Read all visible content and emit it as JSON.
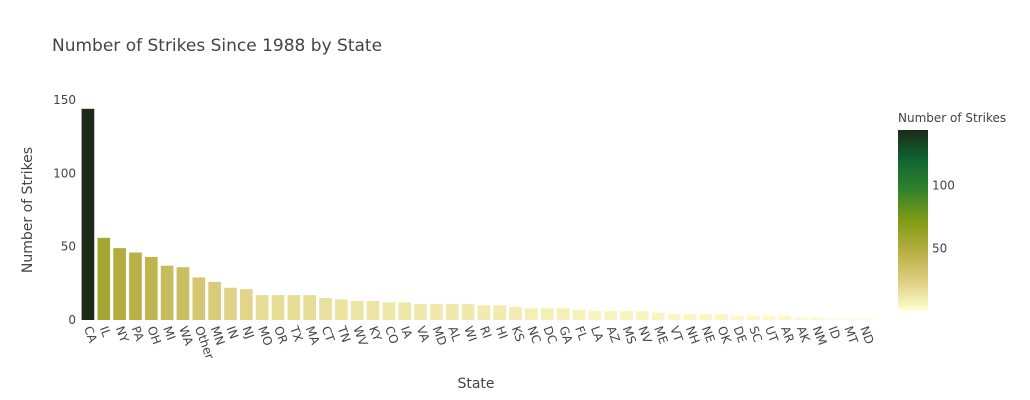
{
  "chart_data": {
    "type": "bar",
    "title": "Number of Strikes Since 1988 by State",
    "xlabel": "State",
    "ylabel": "Number of Strikes",
    "ylim": [
      0,
      150
    ],
    "yticks": [
      0,
      50,
      100,
      150
    ],
    "grid": false,
    "categories": [
      "CA",
      "IL",
      "NY",
      "PA",
      "OH",
      "MI",
      "WA",
      "Other",
      "MN",
      "IN",
      "NJ",
      "MO",
      "OR",
      "TX",
      "MA",
      "CT",
      "TN",
      "WV",
      "KY",
      "CO",
      "IA",
      "VA",
      "MD",
      "AL",
      "WI",
      "RI",
      "HI",
      "KS",
      "NC",
      "DC",
      "GA",
      "FL",
      "LA",
      "AZ",
      "MS",
      "NV",
      "ME",
      "VT",
      "NH",
      "NE",
      "OK",
      "DE",
      "SC",
      "UT",
      "AR",
      "AK",
      "NM",
      "ID",
      "MT",
      "ND"
    ],
    "values": [
      144,
      56,
      49,
      46,
      43,
      37,
      36,
      29,
      26,
      22,
      21,
      17,
      17,
      17,
      17,
      15,
      14,
      13,
      13,
      12,
      12,
      11,
      11,
      11,
      11,
      10,
      10,
      9,
      8,
      8,
      8,
      7,
      6,
      6,
      6,
      6,
      5,
      4,
      4,
      4,
      4,
      3,
      3,
      3,
      3,
      2,
      2,
      1,
      1,
      1
    ],
    "colorbar": {
      "title": "Number of Strikes",
      "ticks": [
        50,
        100
      ],
      "min": 1,
      "max": 144,
      "colorscale": [
        "#fffdcd",
        "#dccd7d",
        "#b4ad40",
        "#7e9b13",
        "#33822c",
        "#0e6632",
        "#1c2a18"
      ]
    }
  }
}
